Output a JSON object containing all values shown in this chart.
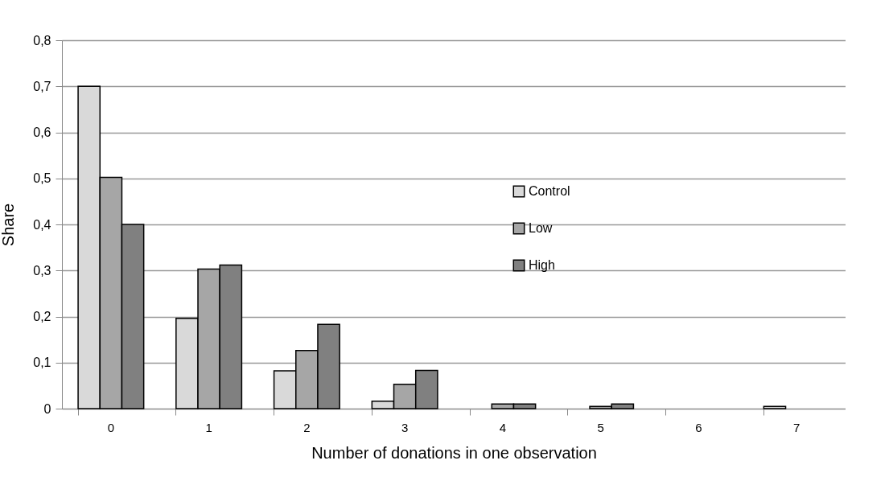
{
  "chart_data": {
    "type": "bar",
    "xlabel": "Number of donations in one observation",
    "ylabel": "Share",
    "categories": [
      "0",
      "1",
      "2",
      "3",
      "4",
      "5",
      "6",
      "7"
    ],
    "series": [
      {
        "name": "Control",
        "color": "#d9d9d9",
        "values": [
          0.7,
          0.196,
          0.082,
          0.016,
          null,
          null,
          null,
          0.005
        ]
      },
      {
        "name": "Low",
        "color": "#a6a6a6",
        "values": [
          0.502,
          0.303,
          0.126,
          0.053,
          0.01,
          0.005,
          null,
          null
        ]
      },
      {
        "name": "High",
        "color": "#808080",
        "values": [
          0.4,
          0.312,
          0.183,
          0.083,
          0.01,
          0.01,
          null,
          null
        ]
      }
    ],
    "ylim": [
      0,
      0.8
    ],
    "yticks": [
      {
        "value": 0,
        "label": "0"
      },
      {
        "value": 0.1,
        "label": "0,1"
      },
      {
        "value": 0.2,
        "label": "0,2"
      },
      {
        "value": 0.3,
        "label": "0,3"
      },
      {
        "value": 0.4,
        "label": "0,4"
      },
      {
        "value": 0.5,
        "label": "0,5"
      },
      {
        "value": 0.6,
        "label": "0,6"
      },
      {
        "value": 0.7,
        "label": "0,7"
      },
      {
        "value": 0.8,
        "label": "0,8"
      }
    ],
    "grid": "y",
    "legend": "center"
  }
}
